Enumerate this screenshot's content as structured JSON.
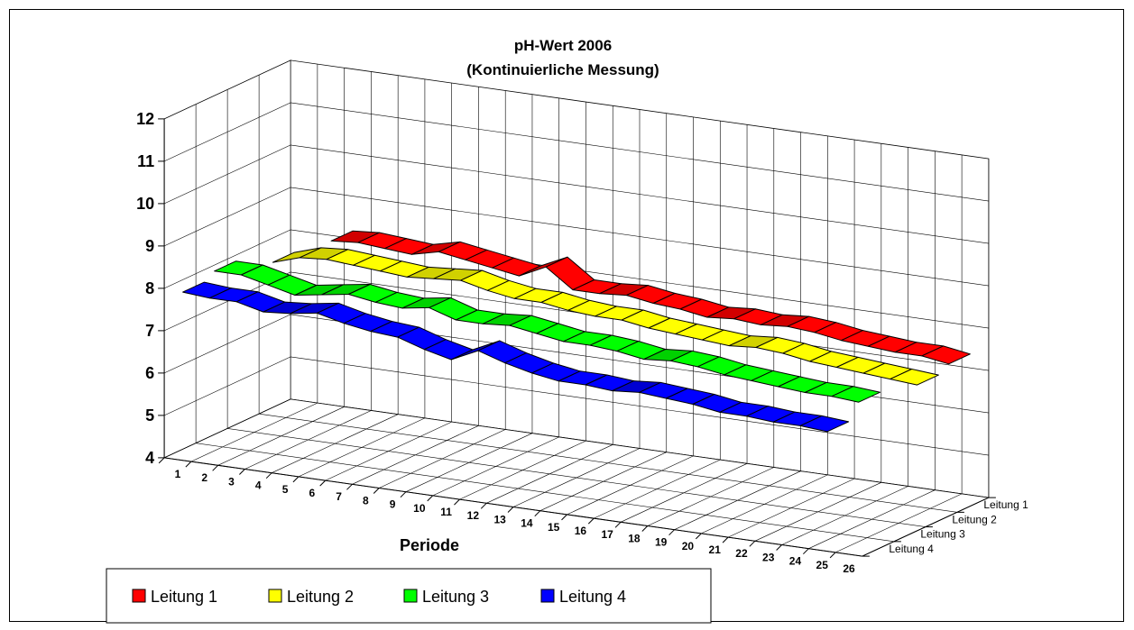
{
  "chart_data": {
    "type": "3d-ribbon-line",
    "title": "pH-Wert 2006",
    "subtitle": "(Kontinuierliche Messung)",
    "xlabel": "Periode",
    "ylabel": "",
    "ylim": [
      4,
      12
    ],
    "yticks": [
      "4",
      "5",
      "6",
      "7",
      "8",
      "9",
      "10",
      "11",
      "12"
    ],
    "categories": [
      "1",
      "2",
      "3",
      "4",
      "5",
      "6",
      "7",
      "8",
      "9",
      "10",
      "11",
      "12",
      "13",
      "14",
      "15",
      "16",
      "17",
      "18",
      "19",
      "20",
      "21",
      "22",
      "23",
      "24",
      "25",
      "26"
    ],
    "depth_labels": [
      "Leitung 1",
      "Leitung 2",
      "Leitung 3",
      "Leitung 4"
    ],
    "legend_position": "bottom-left",
    "grid": true,
    "series": [
      {
        "name": "Leitung 1",
        "color": "#ff0000",
        "values": [
          null,
          null,
          8.25,
          8.3,
          8.25,
          8.2,
          8.35,
          8.25,
          8.15,
          8.05,
          8.35,
          7.9,
          7.9,
          7.95,
          7.85,
          7.8,
          7.7,
          7.75,
          7.7,
          7.75,
          7.7,
          7.6,
          7.55,
          7.5,
          7.5,
          7.4
        ]
      },
      {
        "name": "Leitung 2",
        "color": "#ffff00",
        "values": [
          null,
          8.0,
          8.2,
          8.25,
          8.2,
          8.15,
          8.1,
          8.15,
          8.2,
          8.05,
          7.95,
          7.95,
          7.85,
          7.8,
          7.8,
          7.7,
          7.65,
          7.6,
          7.55,
          7.6,
          7.55,
          7.45,
          7.4,
          7.35,
          7.3,
          7.25
        ]
      },
      {
        "name": "Leitung 3",
        "color": "#00ff00",
        "values": [
          8.05,
          8.05,
          7.9,
          7.75,
          7.85,
          7.95,
          7.85,
          7.8,
          7.9,
          7.7,
          7.7,
          7.75,
          7.65,
          7.55,
          7.55,
          7.5,
          7.4,
          7.45,
          7.4,
          7.3,
          7.25,
          7.2,
          7.15,
          7.15,
          7.1,
          null
        ]
      },
      {
        "name": "Leitung 4",
        "color": "#0000ff",
        "values": [
          7.9,
          7.85,
          7.85,
          7.7,
          7.75,
          7.85,
          7.7,
          7.6,
          7.55,
          7.35,
          7.2,
          7.5,
          7.3,
          7.15,
          7.05,
          7.05,
          7.0,
          7.05,
          7.0,
          6.95,
          6.85,
          6.85,
          6.8,
          6.8,
          6.75,
          null
        ]
      }
    ]
  },
  "legend": {
    "items": [
      {
        "label": "Leitung 1",
        "color": "#ff0000"
      },
      {
        "label": "Leitung 2",
        "color": "#ffff00"
      },
      {
        "label": "Leitung 3",
        "color": "#00ff00"
      },
      {
        "label": "Leitung 4",
        "color": "#0000ff"
      }
    ]
  }
}
